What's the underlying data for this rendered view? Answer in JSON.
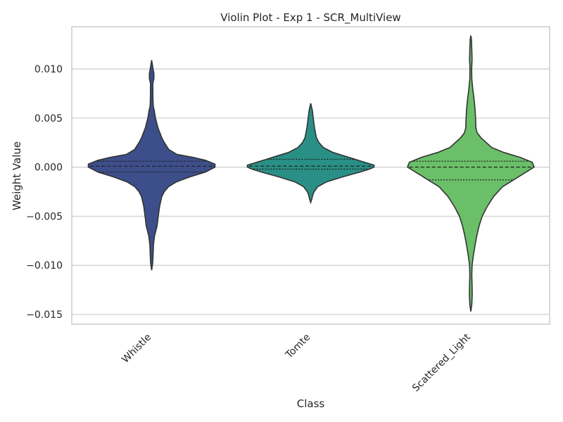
{
  "chart_data": {
    "type": "violin",
    "title": "Violin Plot - Exp 1 - SCR_MultiView",
    "xlabel": "Class",
    "ylabel": "Weight Value",
    "ylim": [
      -0.016,
      0.0143
    ],
    "yticks": [
      -0.015,
      -0.01,
      -0.005,
      0.0,
      0.005,
      0.01
    ],
    "ytick_labels": [
      "−0.015",
      "−0.010",
      "−0.005",
      "0.000",
      "0.005",
      "0.010"
    ],
    "grid": true,
    "categories": [
      "Whistle",
      "Tomte",
      "Scattered_Light"
    ],
    "series": [
      {
        "category": "Whistle",
        "color": "#3d4f8a",
        "min": -0.0105,
        "max": 0.0109,
        "q1": -0.0005,
        "median": 0.0001,
        "q3": 0.0006,
        "density": [
          [
            -0.0105,
            0.0
          ],
          [
            -0.0098,
            0.016
          ],
          [
            -0.009,
            0.022
          ],
          [
            -0.0085,
            0.025
          ],
          [
            -0.0078,
            0.03
          ],
          [
            -0.007,
            0.045
          ],
          [
            -0.006,
            0.085
          ],
          [
            -0.005,
            0.105
          ],
          [
            -0.004,
            0.125
          ],
          [
            -0.003,
            0.16
          ],
          [
            -0.0025,
            0.2
          ],
          [
            -0.002,
            0.265
          ],
          [
            -0.0015,
            0.39
          ],
          [
            -0.001,
            0.6
          ],
          [
            -0.0005,
            0.85
          ],
          [
            0.0,
            1.0
          ],
          [
            0.0003,
            1.0
          ],
          [
            0.0007,
            0.85
          ],
          [
            0.001,
            0.65
          ],
          [
            0.0013,
            0.4
          ],
          [
            0.0018,
            0.27
          ],
          [
            0.0025,
            0.2
          ],
          [
            0.003,
            0.16
          ],
          [
            0.004,
            0.1
          ],
          [
            0.005,
            0.06
          ],
          [
            0.0058,
            0.04
          ],
          [
            0.0062,
            0.025
          ],
          [
            0.007,
            0.02
          ],
          [
            0.0085,
            0.018
          ],
          [
            0.009,
            0.035
          ],
          [
            0.0095,
            0.035
          ],
          [
            0.01,
            0.022
          ],
          [
            0.0109,
            0.0
          ]
        ]
      },
      {
        "category": "Tomte",
        "color": "#2a8f86",
        "min": -0.0036,
        "max": 0.0065,
        "q1": -0.0002,
        "median": 0.0001,
        "q3": 0.0008,
        "density": [
          [
            -0.0036,
            0.0
          ],
          [
            -0.0032,
            0.02
          ],
          [
            -0.0028,
            0.035
          ],
          [
            -0.0025,
            0.055
          ],
          [
            -0.002,
            0.11
          ],
          [
            -0.0015,
            0.25
          ],
          [
            -0.001,
            0.5
          ],
          [
            -0.0005,
            0.78
          ],
          [
            -0.0002,
            0.93
          ],
          [
            0.0,
            1.0
          ],
          [
            0.0002,
            1.0
          ],
          [
            0.0005,
            0.85
          ],
          [
            0.001,
            0.6
          ],
          [
            0.0015,
            0.35
          ],
          [
            0.002,
            0.2
          ],
          [
            0.0025,
            0.13
          ],
          [
            0.003,
            0.09
          ],
          [
            0.004,
            0.06
          ],
          [
            0.005,
            0.04
          ],
          [
            0.0058,
            0.025
          ],
          [
            0.0065,
            0.0
          ]
        ]
      },
      {
        "category": "Scattered_Light",
        "color": "#6abf68",
        "min": -0.0147,
        "max": 0.0134,
        "q1": -0.0013,
        "median": 0.0,
        "q3": 0.0006,
        "density": [
          [
            -0.0147,
            0.0
          ],
          [
            -0.014,
            0.015
          ],
          [
            -0.013,
            0.022
          ],
          [
            -0.012,
            0.02
          ],
          [
            -0.011,
            0.015
          ],
          [
            -0.01,
            0.02
          ],
          [
            -0.009,
            0.04
          ],
          [
            -0.008,
            0.065
          ],
          [
            -0.007,
            0.095
          ],
          [
            -0.006,
            0.13
          ],
          [
            -0.005,
            0.18
          ],
          [
            -0.004,
            0.26
          ],
          [
            -0.003,
            0.36
          ],
          [
            -0.002,
            0.5
          ],
          [
            -0.001,
            0.75
          ],
          [
            0.0,
            1.0
          ],
          [
            0.0005,
            0.97
          ],
          [
            0.001,
            0.78
          ],
          [
            0.0015,
            0.52
          ],
          [
            0.002,
            0.33
          ],
          [
            0.003,
            0.16
          ],
          [
            0.0035,
            0.1
          ],
          [
            0.004,
            0.08
          ],
          [
            0.005,
            0.075
          ],
          [
            0.006,
            0.065
          ],
          [
            0.007,
            0.05
          ],
          [
            0.008,
            0.03
          ],
          [
            0.009,
            0.015
          ],
          [
            0.01,
            0.013
          ],
          [
            0.011,
            0.02
          ],
          [
            0.012,
            0.015
          ],
          [
            0.013,
            0.01
          ],
          [
            0.0134,
            0.0
          ]
        ]
      }
    ]
  }
}
